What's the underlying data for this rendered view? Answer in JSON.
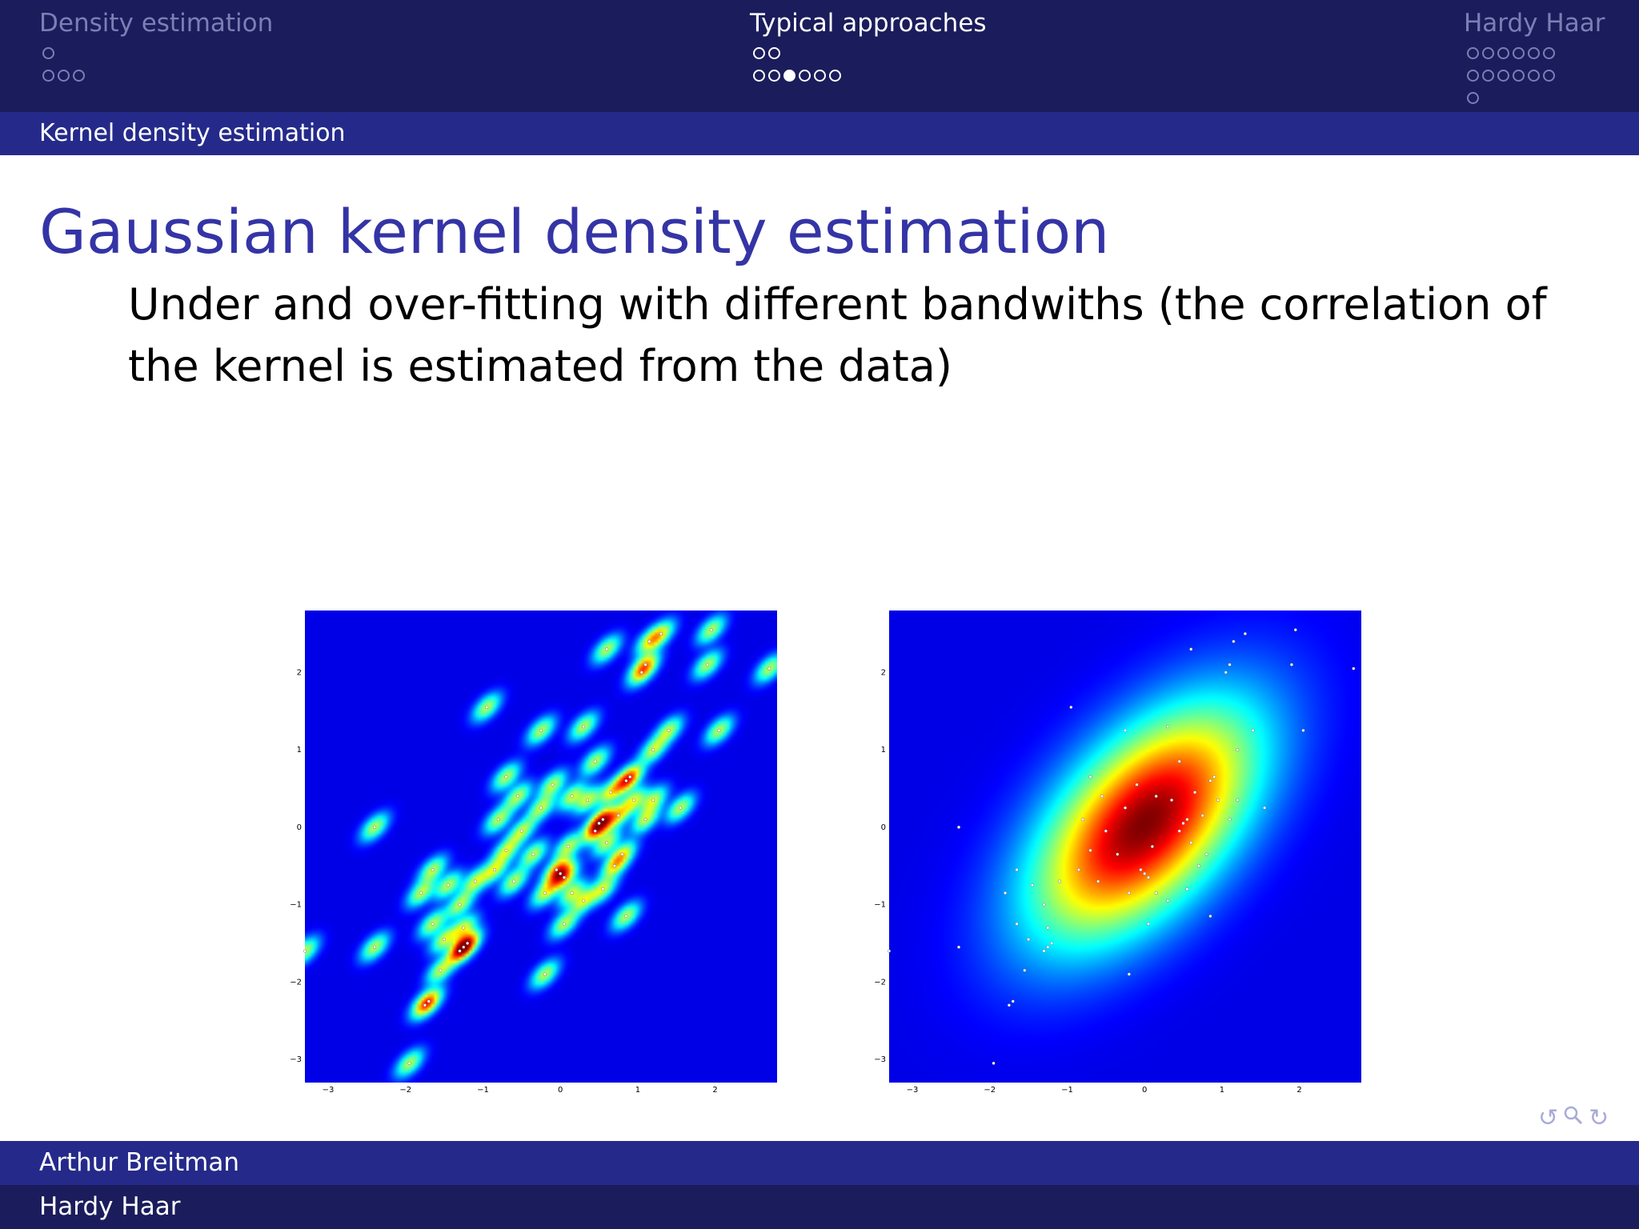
{
  "navigation": {
    "sections": [
      {
        "title": "Density estimation",
        "state": "dim",
        "dot_rows": [
          [
            0
          ],
          [
            0,
            0,
            0
          ]
        ]
      },
      {
        "title": "Typical approaches",
        "state": "active",
        "dot_rows": [
          [
            0,
            0
          ],
          [
            0,
            0,
            1,
            0,
            0,
            0
          ]
        ]
      },
      {
        "title": "Hardy Haar",
        "state": "dim",
        "dot_rows": [
          [
            0,
            0,
            0,
            0,
            0,
            0
          ],
          [
            0,
            0,
            0,
            0,
            0,
            0
          ],
          [
            0
          ]
        ]
      }
    ],
    "subsection": "Kernel density estimation"
  },
  "frame": {
    "title": "Gaussian kernel density estimation",
    "body": "Under and over-fitting with different bandwiths (the correlation of the kernel is estimated from the data)"
  },
  "chart_data": [
    {
      "type": "heatmap",
      "title": "",
      "xlabel": "",
      "ylabel": "",
      "xlim": [
        -3.3,
        2.8
      ],
      "ylim": [
        -3.3,
        2.8
      ],
      "x_ticks": [
        "−3",
        "−2",
        "−1",
        "0",
        "1",
        "2"
      ],
      "y_ticks": [
        "−3",
        "−2",
        "−1",
        "0",
        "1",
        "2"
      ],
      "colormap": "jet",
      "bandwidth": "small",
      "samples": [
        [
          -1.25,
          -1.55
        ],
        [
          -1.3,
          -1.6
        ],
        [
          -1.2,
          -1.5
        ],
        [
          0,
          -0.6
        ],
        [
          -0.05,
          -0.55
        ],
        [
          0.05,
          -0.65
        ],
        [
          0.55,
          0.1
        ],
        [
          0.5,
          0.05
        ],
        [
          1.1,
          2.1
        ],
        [
          1.05,
          2.0
        ],
        [
          0.85,
          0.6
        ],
        [
          0.9,
          0.65
        ],
        [
          -1.7,
          -2.25
        ],
        [
          -1.75,
          -2.3
        ],
        [
          -1.95,
          -3.05
        ],
        [
          -2.4,
          -1.55
        ],
        [
          -3.3,
          -1.6
        ],
        [
          -2.4,
          0.0
        ],
        [
          -0.55,
          0.4
        ],
        [
          -0.7,
          0.65
        ],
        [
          -0.95,
          1.55
        ],
        [
          -0.25,
          1.25
        ],
        [
          0.6,
          2.3
        ],
        [
          1.15,
          2.4
        ],
        [
          1.3,
          2.5
        ],
        [
          1.95,
          2.55
        ],
        [
          2.7,
          2.05
        ],
        [
          1.9,
          2.1
        ],
        [
          2.05,
          1.25
        ],
        [
          1.4,
          1.25
        ],
        [
          1.2,
          1.0
        ],
        [
          0.65,
          0.45
        ],
        [
          0.45,
          -0.05
        ],
        [
          0.95,
          0.35
        ],
        [
          1.55,
          0.25
        ],
        [
          0.8,
          -0.35
        ],
        [
          0.7,
          -0.5
        ],
        [
          0.1,
          -0.25
        ],
        [
          -0.2,
          -0.85
        ],
        [
          0.15,
          -0.85
        ],
        [
          0.05,
          -1.25
        ],
        [
          -0.2,
          -1.9
        ],
        [
          -1.55,
          -1.85
        ],
        [
          -1.5,
          -1.45
        ],
        [
          -1.3,
          -1.0
        ],
        [
          -1.1,
          -0.7
        ],
        [
          -0.85,
          -0.55
        ],
        [
          -0.7,
          -0.3
        ],
        [
          -0.35,
          -0.35
        ],
        [
          -0.5,
          -0.05
        ],
        [
          -0.25,
          0.25
        ],
        [
          -0.1,
          0.55
        ],
        [
          0.15,
          0.4
        ],
        [
          0.35,
          0.35
        ],
        [
          0.75,
          0.15
        ],
        [
          0.6,
          -0.2
        ],
        [
          -1.65,
          -1.25
        ],
        [
          -1.8,
          -0.85
        ],
        [
          -1.65,
          -0.55
        ],
        [
          -1.45,
          -0.75
        ],
        [
          -1.25,
          -1.3
        ],
        [
          1.2,
          0.35
        ],
        [
          1.1,
          0.1
        ],
        [
          0.3,
          1.3
        ],
        [
          0.45,
          0.85
        ],
        [
          -0.6,
          -0.7
        ],
        [
          0.3,
          -0.95
        ],
        [
          0.55,
          -0.8
        ],
        [
          0.85,
          -1.15
        ],
        [
          -0.8,
          0.1
        ]
      ]
    },
    {
      "type": "heatmap",
      "title": "",
      "xlabel": "",
      "ylabel": "",
      "xlim": [
        -3.3,
        2.8
      ],
      "ylim": [
        -3.3,
        2.8
      ],
      "x_ticks": [
        "−3",
        "−2",
        "−1",
        "0",
        "1",
        "2"
      ],
      "y_ticks": [
        "−3",
        "−2",
        "−1",
        "0",
        "1",
        "2"
      ],
      "colormap": "jet",
      "bandwidth": "large",
      "samples": [
        [
          -1.25,
          -1.55
        ],
        [
          -1.3,
          -1.6
        ],
        [
          -1.2,
          -1.5
        ],
        [
          0,
          -0.6
        ],
        [
          -0.05,
          -0.55
        ],
        [
          0.05,
          -0.65
        ],
        [
          0.55,
          0.1
        ],
        [
          0.5,
          0.05
        ],
        [
          1.1,
          2.1
        ],
        [
          1.05,
          2.0
        ],
        [
          0.85,
          0.6
        ],
        [
          0.9,
          0.65
        ],
        [
          -1.7,
          -2.25
        ],
        [
          -1.75,
          -2.3
        ],
        [
          -1.95,
          -3.05
        ],
        [
          -2.4,
          -1.55
        ],
        [
          -3.3,
          -1.6
        ],
        [
          -2.4,
          0.0
        ],
        [
          -0.55,
          0.4
        ],
        [
          -0.7,
          0.65
        ],
        [
          -0.95,
          1.55
        ],
        [
          -0.25,
          1.25
        ],
        [
          0.6,
          2.3
        ],
        [
          1.15,
          2.4
        ],
        [
          1.3,
          2.5
        ],
        [
          1.95,
          2.55
        ],
        [
          2.7,
          2.05
        ],
        [
          1.9,
          2.1
        ],
        [
          2.05,
          1.25
        ],
        [
          1.4,
          1.25
        ],
        [
          1.2,
          1.0
        ],
        [
          0.65,
          0.45
        ],
        [
          0.45,
          -0.05
        ],
        [
          0.95,
          0.35
        ],
        [
          1.55,
          0.25
        ],
        [
          0.8,
          -0.35
        ],
        [
          0.7,
          -0.5
        ],
        [
          0.1,
          -0.25
        ],
        [
          -0.2,
          -0.85
        ],
        [
          0.15,
          -0.85
        ],
        [
          0.05,
          -1.25
        ],
        [
          -0.2,
          -1.9
        ],
        [
          -1.55,
          -1.85
        ],
        [
          -1.5,
          -1.45
        ],
        [
          -1.3,
          -1.0
        ],
        [
          -1.1,
          -0.7
        ],
        [
          -0.85,
          -0.55
        ],
        [
          -0.7,
          -0.3
        ],
        [
          -0.35,
          -0.35
        ],
        [
          -0.5,
          -0.05
        ],
        [
          -0.25,
          0.25
        ],
        [
          -0.1,
          0.55
        ],
        [
          0.15,
          0.4
        ],
        [
          0.35,
          0.35
        ],
        [
          0.75,
          0.15
        ],
        [
          0.6,
          -0.2
        ],
        [
          -1.65,
          -1.25
        ],
        [
          -1.8,
          -0.85
        ],
        [
          -1.65,
          -0.55
        ],
        [
          -1.45,
          -0.75
        ],
        [
          -1.25,
          -1.3
        ],
        [
          1.2,
          0.35
        ],
        [
          1.1,
          0.1
        ],
        [
          0.3,
          1.3
        ],
        [
          0.45,
          0.85
        ],
        [
          -0.6,
          -0.7
        ],
        [
          0.3,
          -0.95
        ],
        [
          0.55,
          -0.8
        ],
        [
          0.85,
          -1.15
        ],
        [
          -0.8,
          0.1
        ]
      ]
    }
  ],
  "beamer_nav": {
    "icons": [
      "undo-arc-icon",
      "search-icon",
      "redo-arc-icon"
    ],
    "glyphs": [
      "↺",
      "🔍",
      "↻"
    ]
  },
  "footer": {
    "author": "Arthur Breitman",
    "institute": "Hardy Haar"
  },
  "colors": {
    "nav_dark": "#1b1c5c",
    "nav_mid": "#252a8a",
    "title": "#3434a6",
    "plot_bg": "#00008f"
  }
}
